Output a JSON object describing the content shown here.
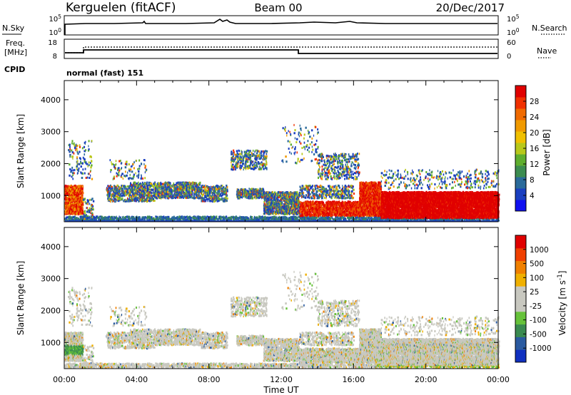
{
  "header": {
    "station": "Kerguelen (fitACF)",
    "beam": "Beam 00",
    "date": "20/Dec/2017"
  },
  "noise_panel": {
    "left_label": "N.Sky",
    "right_label": "N.Search",
    "left_ticks": [
      "10^5",
      "10^0"
    ],
    "right_ticks": [
      "10^5",
      "10^0"
    ]
  },
  "freq_panel": {
    "left_label_line1": "Freq.",
    "left_label_line2": "[MHz]",
    "right_label": "Nave",
    "left_ticks": [
      "18",
      "8"
    ],
    "right_ticks": [
      "60",
      "0"
    ]
  },
  "cpid": {
    "label": "CPID",
    "value": "normal (fast) 151"
  },
  "chart_data": [
    {
      "type": "heatmap",
      "title": "",
      "xlabel": "Time UT",
      "ylabel": "Slant Range [km]",
      "x_ticks": [
        "00:00",
        "04:00",
        "08:00",
        "12:00",
        "16:00",
        "20:00",
        "00:00"
      ],
      "y_ticks": [
        1000,
        2000,
        3000,
        4000
      ],
      "ylim": [
        180,
        4600
      ],
      "colorbar": {
        "label": "Power [dB]",
        "ticks": [
          4,
          8,
          12,
          16,
          20,
          24,
          28
        ],
        "colors": [
          "#1010f0",
          "#1a3fc0",
          "#2a6a9a",
          "#3c8c50",
          "#5fae2e",
          "#b8c81a",
          "#f0c000",
          "#f09a00",
          "#f06a00",
          "#f03000",
          "#e00000"
        ]
      }
    },
    {
      "type": "heatmap",
      "title": "",
      "xlabel": "Time UT",
      "ylabel": "Slant Range [km]",
      "x_ticks": [
        "00:00",
        "04:00",
        "08:00",
        "12:00",
        "16:00",
        "20:00",
        "00:00"
      ],
      "y_ticks": [
        1000,
        2000,
        3000,
        4000
      ],
      "ylim": [
        180,
        4600
      ],
      "colorbar": {
        "label": "Velocity [m s^-1]",
        "ticks": [
          1000,
          500,
          100,
          25,
          -25,
          -100,
          -500,
          -1000
        ],
        "colors": [
          "#1030c0",
          "#2a5aa0",
          "#3a8a50",
          "#66c23a",
          "#c8c8c0",
          "#c8c8c0",
          "#f0b000",
          "#f08000",
          "#f04000",
          "#e00000"
        ]
      }
    }
  ]
}
